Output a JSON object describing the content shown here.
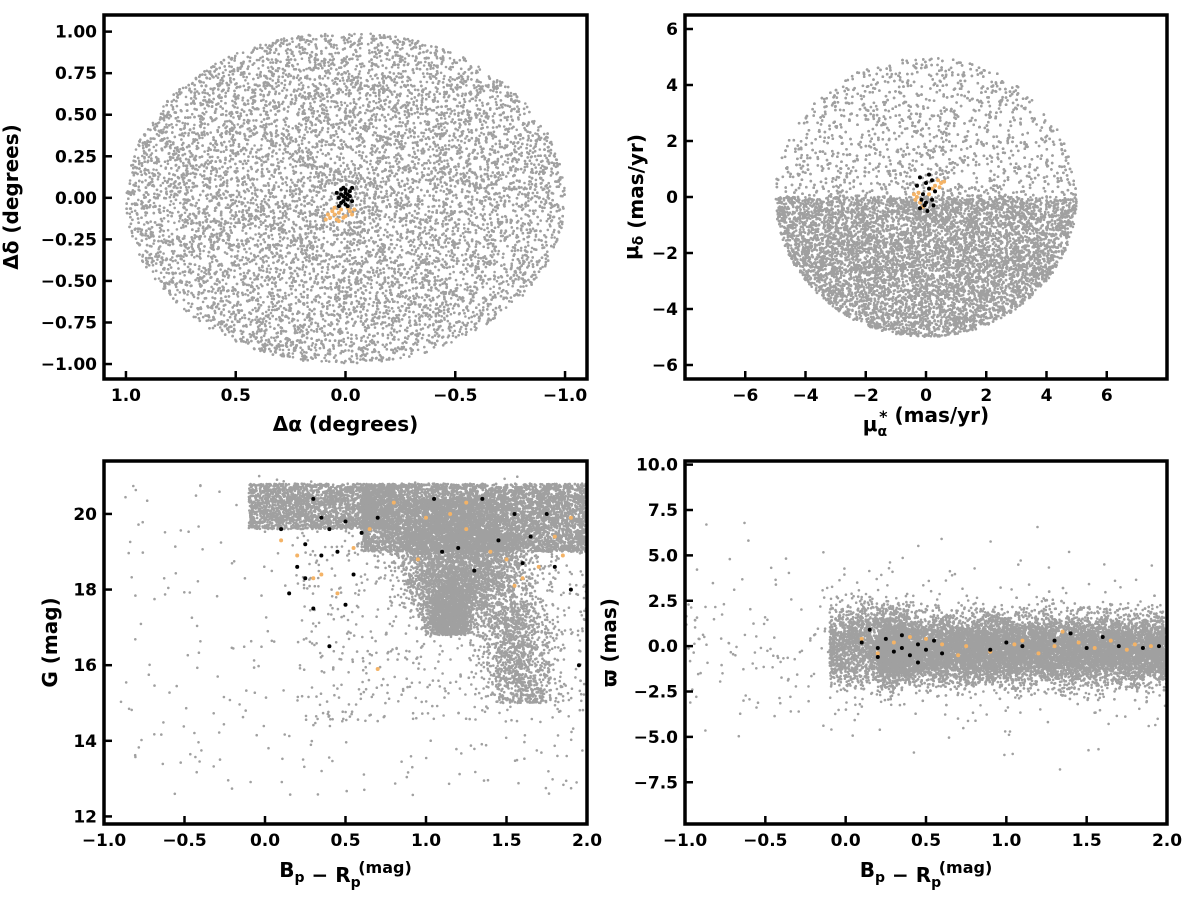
{
  "colors": {
    "field_stars": "#a0a0a0",
    "members_black": "#000000",
    "members_orange": "#f4b366",
    "axes": "#000000"
  },
  "chart_data": [
    {
      "id": "position",
      "type": "scatter",
      "xlabel_parts": [
        "Δα (degrees)"
      ],
      "ylabel_parts": [
        "Δδ (degrees)"
      ],
      "xlim": [
        1.1,
        -1.1
      ],
      "ylim": [
        -1.09,
        1.1
      ],
      "x_inverted": true,
      "xticks": [
        1.0,
        0.5,
        0.0,
        -0.5,
        -1.0
      ],
      "xtick_labels": [
        "1.0",
        "0.5",
        "0.0",
        "−0.5",
        "−1.0"
      ],
      "yticks": [
        1.0,
        0.75,
        0.5,
        0.25,
        0.0,
        -0.25,
        -0.5,
        -0.75,
        -1.0
      ],
      "ytick_labels": [
        "1.00",
        "0.75",
        "0.50",
        "0.25",
        "0.00",
        "−0.25",
        "−0.50",
        "−0.75",
        "−1.00"
      ],
      "field": {
        "shape": "ellipse",
        "center": [
          0,
          0
        ],
        "radius": [
          1.0,
          1.0
        ],
        "count": 9000
      },
      "black_points": [
        [
          0.02,
          0.05
        ],
        [
          0.0,
          0.03
        ],
        [
          -0.01,
          0.02
        ],
        [
          0.01,
          -0.02
        ],
        [
          -0.02,
          0.01
        ],
        [
          0.03,
          0.0
        ],
        [
          0.0,
          -0.04
        ],
        [
          -0.03,
          0.06
        ],
        [
          0.01,
          0.06
        ],
        [
          0.02,
          -0.03
        ],
        [
          -0.01,
          -0.05
        ],
        [
          0.0,
          0.0
        ],
        [
          0.04,
          0.03
        ],
        [
          -0.02,
          0.04
        ],
        [
          0.01,
          0.01
        ],
        [
          -0.01,
          -0.01
        ],
        [
          0.02,
          0.02
        ],
        [
          0.03,
          -0.05
        ],
        [
          -0.03,
          -0.02
        ],
        [
          0.0,
          0.05
        ]
      ],
      "orange_points": [
        [
          0.07,
          -0.12
        ],
        [
          0.05,
          -0.1
        ],
        [
          0.03,
          -0.09
        ],
        [
          0.0,
          -0.11
        ],
        [
          -0.02,
          -0.08
        ],
        [
          0.04,
          -0.13
        ],
        [
          0.06,
          -0.08
        ],
        [
          0.02,
          -0.07
        ],
        [
          -0.03,
          -0.1
        ],
        [
          0.01,
          -0.12
        ],
        [
          0.08,
          -0.1
        ],
        [
          -0.01,
          -0.06
        ],
        [
          0.05,
          -0.06
        ],
        [
          0.03,
          -0.14
        ],
        [
          0.09,
          -0.13
        ],
        [
          -0.04,
          -0.07
        ]
      ]
    },
    {
      "id": "proper-motion",
      "type": "scatter",
      "xlabel_parts": [
        "μ",
        "α",
        "*",
        "  (mas/yr)"
      ],
      "ylabel_parts": [
        "μ",
        "δ",
        "",
        " (mas/yr)"
      ],
      "xlim": [
        -8,
        8
      ],
      "ylim": [
        -6.5,
        6.5
      ],
      "xticks": [
        -6,
        -4,
        -2,
        0,
        2,
        4,
        6
      ],
      "xtick_labels": [
        "−6",
        "−4",
        "−2",
        "0",
        "2",
        "4",
        "6"
      ],
      "yticks": [
        6,
        4,
        2,
        0,
        -2,
        -4,
        -6
      ],
      "ytick_labels": [
        "6",
        "4",
        "2",
        "0",
        "−2",
        "−4",
        "−6"
      ],
      "field": {
        "shape": "ellipse",
        "center": [
          0,
          0
        ],
        "radius": [
          5.0,
          5.0
        ],
        "count": 9000
      },
      "black_points": [
        [
          -0.2,
          0.7
        ],
        [
          0.0,
          0.5
        ],
        [
          0.1,
          0.3
        ],
        [
          -0.1,
          0.1
        ],
        [
          0.2,
          -0.1
        ],
        [
          -0.05,
          -0.3
        ],
        [
          0.05,
          -0.5
        ],
        [
          -0.2,
          -0.4
        ],
        [
          0.3,
          0.2
        ],
        [
          -0.3,
          0.4
        ],
        [
          0.1,
          0.8
        ],
        [
          0.0,
          -0.2
        ],
        [
          0.2,
          0.6
        ],
        [
          -0.15,
          -0.1
        ],
        [
          0.25,
          -0.3
        ]
      ],
      "orange_points": [
        [
          -0.3,
          0.0
        ],
        [
          -0.2,
          -0.2
        ],
        [
          -0.4,
          0.1
        ],
        [
          0.3,
          0.4
        ],
        [
          0.5,
          0.5
        ],
        [
          0.4,
          0.6
        ],
        [
          0.6,
          0.55
        ],
        [
          -0.1,
          -0.35
        ],
        [
          0.2,
          0.3
        ],
        [
          -0.35,
          -0.1
        ],
        [
          0.45,
          0.35
        ],
        [
          0.1,
          0.1
        ],
        [
          -0.25,
          0.15
        ]
      ]
    },
    {
      "id": "cmd",
      "type": "scatter",
      "xlabel_parts": [
        "B",
        "p",
        "",
        " − ",
        "R",
        "p",
        " (mag)"
      ],
      "ylabel_parts": [
        "G (mag)"
      ],
      "xlim": [
        -1.0,
        2.0
      ],
      "ylim": [
        11.8,
        21.4
      ],
      "y_inverted_display": false,
      "xticks": [
        -1.0,
        -0.5,
        0.0,
        0.5,
        1.0,
        1.5,
        2.0
      ],
      "xtick_labels": [
        "−1.0",
        "−0.5",
        "0.0",
        "0.5",
        "1.0",
        "1.5",
        "2.0"
      ],
      "yticks": [
        12,
        14,
        16,
        18,
        20
      ],
      "ytick_labels": [
        "12",
        "14",
        "16",
        "18",
        "20"
      ],
      "black_points": [
        [
          0.3,
          20.4
        ],
        [
          0.35,
          19.9
        ],
        [
          0.4,
          19.6
        ],
        [
          0.25,
          19.2
        ],
        [
          0.45,
          19.0
        ],
        [
          0.5,
          19.8
        ],
        [
          0.2,
          18.6
        ],
        [
          0.15,
          17.9
        ],
        [
          0.55,
          18.4
        ],
        [
          0.3,
          17.5
        ],
        [
          0.4,
          16.5
        ],
        [
          0.5,
          17.6
        ],
        [
          0.6,
          19.5
        ],
        [
          0.7,
          19.9
        ],
        [
          1.05,
          20.4
        ],
        [
          1.2,
          19.1
        ],
        [
          1.3,
          18.5
        ],
        [
          1.35,
          20.4
        ],
        [
          1.45,
          19.3
        ],
        [
          1.55,
          20.0
        ],
        [
          1.65,
          19.4
        ],
        [
          1.75,
          20.0
        ],
        [
          1.8,
          18.6
        ],
        [
          1.9,
          18.0
        ],
        [
          1.95,
          16.0
        ],
        [
          0.1,
          19.6
        ],
        [
          0.35,
          18.9
        ],
        [
          0.25,
          18.3
        ],
        [
          1.1,
          19.0
        ],
        [
          1.6,
          18.7
        ]
      ],
      "orange_points": [
        [
          0.1,
          19.3
        ],
        [
          0.2,
          18.9
        ],
        [
          0.3,
          18.3
        ],
        [
          0.45,
          17.9
        ],
        [
          0.55,
          19.1
        ],
        [
          0.65,
          19.6
        ],
        [
          0.8,
          20.3
        ],
        [
          1.0,
          19.9
        ],
        [
          1.15,
          20.0
        ],
        [
          1.25,
          19.6
        ],
        [
          1.4,
          19.0
        ],
        [
          1.5,
          18.8
        ],
        [
          1.6,
          18.3
        ],
        [
          1.7,
          18.6
        ],
        [
          1.8,
          19.4
        ],
        [
          1.9,
          19.9
        ],
        [
          0.7,
          15.9
        ],
        [
          0.35,
          18.4
        ],
        [
          1.25,
          20.3
        ],
        [
          0.95,
          18.8
        ],
        [
          1.55,
          18.1
        ],
        [
          1.85,
          18.9
        ]
      ]
    },
    {
      "id": "parallax",
      "type": "scatter",
      "xlabel_parts": [
        "B",
        "p",
        "",
        " − ",
        "R",
        "p",
        " (mag)"
      ],
      "ylabel_parts": [
        "ϖ (mas)"
      ],
      "xlim": [
        -1.0,
        2.0
      ],
      "ylim": [
        -9.8,
        10.2
      ],
      "xticks": [
        -1.0,
        -0.5,
        0.0,
        0.5,
        1.0,
        1.5,
        2.0
      ],
      "xtick_labels": [
        "−1.0",
        "−0.5",
        "0.0",
        "0.5",
        "1.0",
        "1.5",
        "2.0"
      ],
      "yticks": [
        10.0,
        7.5,
        5.0,
        2.5,
        0.0,
        -2.5,
        -5.0,
        -7.5
      ],
      "ytick_labels": [
        "10.0",
        "7.5",
        "5.0",
        "2.5",
        "0.0",
        "−2.5",
        "−5.0",
        "−7.5"
      ],
      "black_points": [
        [
          0.1,
          0.2
        ],
        [
          0.2,
          -0.1
        ],
        [
          0.25,
          0.4
        ],
        [
          0.3,
          -0.3
        ],
        [
          0.35,
          0.6
        ],
        [
          0.4,
          -0.5
        ],
        [
          0.45,
          0.1
        ],
        [
          0.5,
          -0.2
        ],
        [
          0.55,
          0.3
        ],
        [
          0.6,
          -0.4
        ],
        [
          0.2,
          -0.6
        ],
        [
          0.35,
          -0.1
        ],
        [
          0.9,
          -0.2
        ],
        [
          1.0,
          0.2
        ],
        [
          1.1,
          0.0
        ],
        [
          1.3,
          0.3
        ],
        [
          1.4,
          0.7
        ],
        [
          1.5,
          -0.1
        ],
        [
          1.6,
          0.5
        ],
        [
          1.7,
          0.0
        ],
        [
          1.85,
          -0.1
        ],
        [
          1.95,
          0.0
        ],
        [
          0.45,
          -0.9
        ],
        [
          0.15,
          0.9
        ]
      ],
      "orange_points": [
        [
          0.1,
          0.4
        ],
        [
          0.2,
          -0.4
        ],
        [
          0.3,
          0.2
        ],
        [
          0.5,
          0.4
        ],
        [
          0.6,
          0.1
        ],
        [
          0.75,
          0.0
        ],
        [
          0.9,
          -0.3
        ],
        [
          1.05,
          0.1
        ],
        [
          1.2,
          -0.4
        ],
        [
          1.3,
          0.0
        ],
        [
          1.45,
          0.2
        ],
        [
          1.55,
          -0.1
        ],
        [
          1.65,
          0.3
        ],
        [
          1.75,
          -0.2
        ],
        [
          1.8,
          0.1
        ],
        [
          1.9,
          0.0
        ],
        [
          0.4,
          0.5
        ],
        [
          0.7,
          -0.5
        ],
        [
          1.1,
          0.3
        ],
        [
          1.35,
          0.8
        ]
      ]
    }
  ]
}
